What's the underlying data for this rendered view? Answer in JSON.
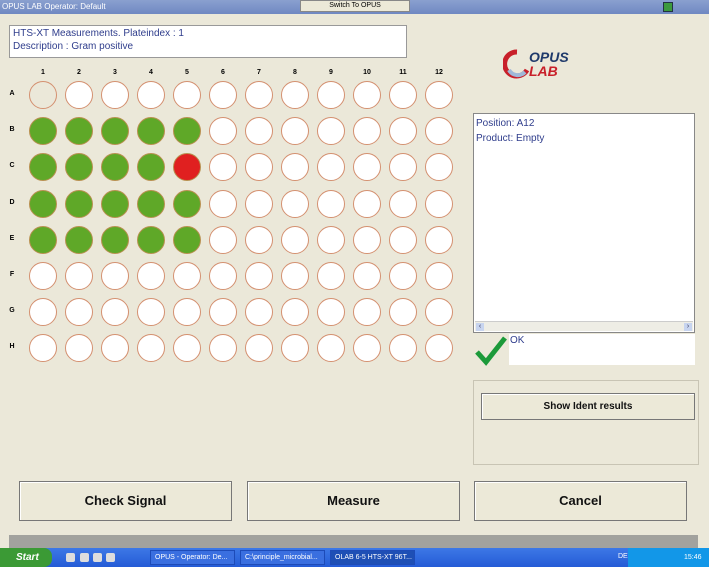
{
  "window": {
    "title": "OPUS LAB Operator: Default",
    "switch_label": "Switch To OPUS"
  },
  "header": {
    "line1": "HTS-XT Measurements. Plateindex : 1",
    "line2": "Description : Gram positive"
  },
  "logo": {
    "top": "OPUS",
    "bottom": "LAB"
  },
  "plate": {
    "columns": [
      "1",
      "2",
      "3",
      "4",
      "5",
      "6",
      "7",
      "8",
      "9",
      "10",
      "11",
      "12"
    ],
    "rows": [
      "A",
      "B",
      "C",
      "D",
      "E",
      "F",
      "G",
      "H"
    ],
    "colors": {
      "green": "#5fa828",
      "red": "#e02020",
      "empty": "#ffffff",
      "blank": "transparent"
    },
    "wells": [
      [
        "blank",
        "empty",
        "empty",
        "empty",
        "empty",
        "empty",
        "empty",
        "empty",
        "empty",
        "empty",
        "empty",
        "empty"
      ],
      [
        "green",
        "green",
        "green",
        "green",
        "green",
        "empty",
        "empty",
        "empty",
        "empty",
        "empty",
        "empty",
        "empty"
      ],
      [
        "green",
        "green",
        "green",
        "green",
        "red",
        "empty",
        "empty",
        "empty",
        "empty",
        "empty",
        "empty",
        "empty"
      ],
      [
        "green",
        "green",
        "green",
        "green",
        "green",
        "empty",
        "empty",
        "empty",
        "empty",
        "empty",
        "empty",
        "empty"
      ],
      [
        "green",
        "green",
        "green",
        "green",
        "green",
        "empty",
        "empty",
        "empty",
        "empty",
        "empty",
        "empty",
        "empty"
      ],
      [
        "empty",
        "empty",
        "empty",
        "empty",
        "empty",
        "empty",
        "empty",
        "empty",
        "empty",
        "empty",
        "empty",
        "empty"
      ],
      [
        "empty",
        "empty",
        "empty",
        "empty",
        "empty",
        "empty",
        "empty",
        "empty",
        "empty",
        "empty",
        "empty",
        "empty"
      ],
      [
        "empty",
        "empty",
        "empty",
        "empty",
        "empty",
        "empty",
        "empty",
        "empty",
        "empty",
        "empty",
        "empty",
        "empty"
      ]
    ]
  },
  "info": {
    "position": "Position: A12",
    "product": "Product: Empty"
  },
  "status": {
    "text": "OK"
  },
  "buttons": {
    "show_ident": "Show Ident results",
    "check_signal": "Check Signal",
    "measure": "Measure",
    "cancel": "Cancel"
  },
  "taskbar": {
    "start": "Start",
    "tasks": [
      "OPUS - Operator: De...",
      "C:\\principle_microbial...",
      "OLAB 6-5 HTS-XT 96T..."
    ],
    "lang": "DE",
    "clock": "15:46"
  }
}
